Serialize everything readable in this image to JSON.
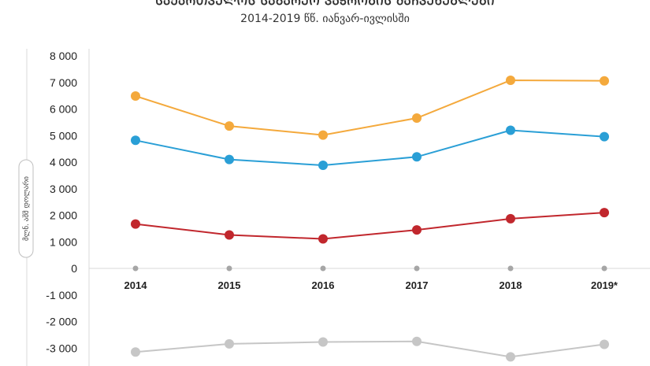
{
  "chart_data": {
    "type": "line",
    "title": "ᲡᲐᲥᲐᲠᲗᲕᲔᲚᲝᲡ ᲡᲐᲒᲐᲠᲔᲝ ᲕᲐᲭᲠᲝᲑᲘᲡ ᲛᲐᲩᲕᲔᲜᲔᲑᲚᲔᲑᲘ",
    "subtitle": "2014-2019 წწ. იანვარ-ივლისში",
    "ylabel": "მლნ. აშშ დოლარი",
    "ylim": [
      -3000,
      8000
    ],
    "yticks": [
      "8 000",
      "7 000",
      "6 000",
      "5 000",
      "4 000",
      "3 000",
      "2 000",
      "1 000",
      "0",
      "-1 000",
      "-2 000",
      "-3 000"
    ],
    "ytick_values": [
      8000,
      7000,
      6000,
      5000,
      4000,
      3000,
      2000,
      1000,
      0,
      -1000,
      -2000,
      -3000
    ],
    "categories": [
      "2014",
      "2015",
      "2016",
      "2017",
      "2018",
      "2019*"
    ],
    "series": [
      {
        "color": "#f4a93c",
        "values": [
          6490,
          5360,
          5020,
          5660,
          7080,
          7060
        ]
      },
      {
        "color": "#2a9fd6",
        "values": [
          4820,
          4100,
          3880,
          4200,
          5200,
          4960
        ]
      },
      {
        "color": "#c1272d",
        "values": [
          1670,
          1260,
          1110,
          1450,
          1870,
          2100
        ]
      },
      {
        "color": "#c6c6c6",
        "values": [
          -3150,
          -2840,
          -2770,
          -2750,
          -3330,
          -2860
        ]
      }
    ],
    "zero_markers_color": "#a6a6a6",
    "grid": false,
    "legend": "none"
  }
}
